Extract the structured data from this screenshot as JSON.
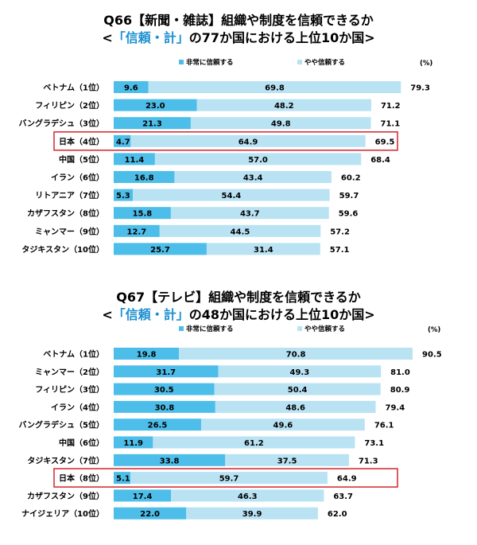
{
  "colors": {
    "very_trust": "#4dbde9",
    "somewhat_trust": "#b9e2f3",
    "highlight_border": "#d4242b",
    "title_accent": "#1c8fd1"
  },
  "chart_data": [
    {
      "type": "bar",
      "orientation": "horizontal",
      "stacked": true,
      "title_line1": "Q66【新聞・雑誌】組織や制度を信頼できるか",
      "title_line2_prefix": "<",
      "title_line2_accent": "「信頼・計」",
      "title_line2_suffix": "の77か国における上位10か国>",
      "unit": "(%)",
      "categories": [
        "ベトナム（1位）",
        "フィリピン（2位）",
        "バングラデシュ（3位）",
        "日本（4位）",
        "中国（5位）",
        "イラン（6位）",
        "リトアニア（7位）",
        "カザフスタン（8位）",
        "ミャンマー（9位）",
        "タジキスタン（10位）"
      ],
      "series": [
        {
          "name": "非常に信頼する",
          "values": [
            9.6,
            23.0,
            21.3,
            4.7,
            11.4,
            16.8,
            5.3,
            15.8,
            12.7,
            25.7
          ]
        },
        {
          "name": "やや信頼する",
          "values": [
            69.8,
            48.2,
            49.8,
            64.9,
            57.0,
            43.4,
            54.4,
            43.7,
            44.5,
            31.4
          ]
        }
      ],
      "totals": [
        "79.3",
        "71.2",
        "71.1",
        "69.5",
        "68.4",
        "60.2",
        "59.7",
        "59.6",
        "57.2",
        "57.1"
      ],
      "highlight_index": 3,
      "xlim": [
        0,
        100
      ],
      "legend": "top"
    },
    {
      "type": "bar",
      "orientation": "horizontal",
      "stacked": true,
      "title_line1": "Q67【テレビ】組織や制度を信頼できるか",
      "title_line2_prefix": "<",
      "title_line2_accent": "「信頼・計」",
      "title_line2_suffix": "の48か国における上位10か国>",
      "unit": "(%)",
      "categories": [
        "ベトナム（1位）",
        "ミャンマー（2位）",
        "フィリピン（3位）",
        "イラン（4位）",
        "バングラデシュ（5位）",
        "中国（6位）",
        "タジキスタン（7位）",
        "日本（8位）",
        "カザフスタン（9位）",
        "ナイジェリア（10位）"
      ],
      "series": [
        {
          "name": "非常に信頼する",
          "values": [
            19.8,
            31.7,
            30.5,
            30.8,
            26.5,
            11.9,
            33.8,
            5.1,
            17.4,
            22.0
          ]
        },
        {
          "name": "やや信頼する",
          "values": [
            70.8,
            49.3,
            50.4,
            48.6,
            49.6,
            61.2,
            37.5,
            59.7,
            46.3,
            39.9
          ]
        }
      ],
      "totals": [
        "90.5",
        "81.0",
        "80.9",
        "79.4",
        "76.1",
        "73.1",
        "71.3",
        "64.9",
        "63.7",
        "62.0"
      ],
      "highlight_index": 7,
      "xlim": [
        0,
        100
      ],
      "legend": "top"
    }
  ]
}
